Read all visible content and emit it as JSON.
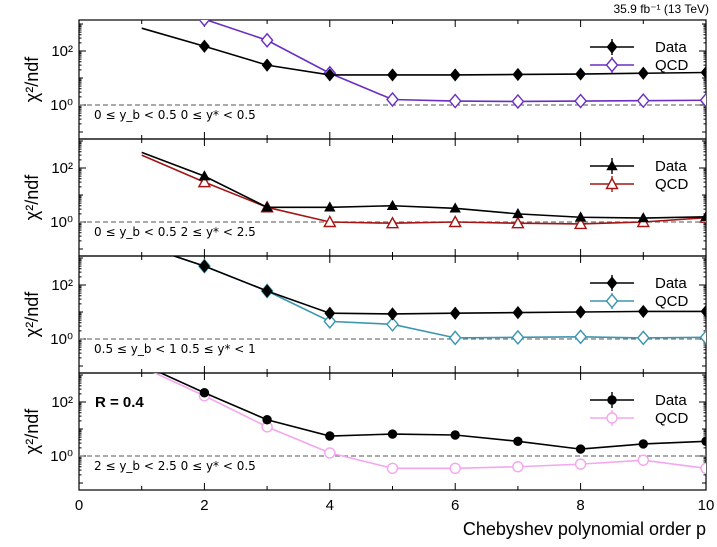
{
  "header": {
    "luminosity": "35.9 fb⁻¹ (13 TeV)"
  },
  "chart_data": {
    "type": "line",
    "x_axis": {
      "label": "Chebyshev polynomial order p",
      "range": [
        0,
        10
      ],
      "ticks": [
        "0",
        "2",
        "4",
        "6",
        "8",
        "10"
      ]
    },
    "y_axis": {
      "label": "χ²/ndf",
      "scale": "log",
      "ticks": [
        "10⁰",
        "10²"
      ]
    },
    "panels": [
      {
        "range_text": "0 ≤ y_b < 0.5    0 ≤ y* < 0.5",
        "series": [
          {
            "name": "Data",
            "color": "#000000",
            "marker": "diamond",
            "filled": true,
            "x": [
              1,
              2,
              3,
              4,
              5,
              6,
              7,
              8,
              9,
              10
            ],
            "y": [
              700,
              150,
              30,
              13,
              13,
              13,
              13.5,
              14,
              15,
              16
            ]
          },
          {
            "name": "QCD",
            "color": "#6a2ec2",
            "marker": "diamond",
            "filled": false,
            "x": [
              1,
              2,
              3,
              4,
              5,
              6,
              7,
              8,
              9,
              10
            ],
            "y": [
              8000,
              1500,
              250,
              15,
              1.6,
              1.4,
              1.35,
              1.4,
              1.45,
              1.5
            ]
          }
        ]
      },
      {
        "range_text": "0 ≤ y_b < 0.5    2 ≤ y* < 2.5",
        "series": [
          {
            "name": "Data",
            "color": "#000000",
            "marker": "triangle",
            "filled": true,
            "x": [
              1,
              2,
              3,
              4,
              5,
              6,
              7,
              8,
              9,
              10
            ],
            "y": [
              380,
              50,
              3.5,
              3.5,
              4.0,
              3.2,
              2.0,
              1.5,
              1.4,
              1.55
            ]
          },
          {
            "name": "QCD",
            "color": "#a31515",
            "marker": "triangle",
            "filled": false,
            "x": [
              1,
              2,
              3,
              4,
              5,
              6,
              7,
              8,
              9,
              10
            ],
            "y": [
              300,
              30,
              3.5,
              1.0,
              0.9,
              1.0,
              0.9,
              0.85,
              1.0,
              1.45
            ]
          }
        ]
      },
      {
        "range_text": "0.5 ≤ y_b < 1    0.5 ≤ y* < 1",
        "series": [
          {
            "name": "Data",
            "color": "#000000",
            "marker": "diamond",
            "filled": true,
            "x": [
              1,
              2,
              3,
              4,
              5,
              6,
              7,
              8,
              9,
              10
            ],
            "y": [
              3000,
              500,
              60,
              9,
              8.5,
              9,
              9.5,
              10,
              10.5,
              10.5
            ]
          },
          {
            "name": "QCD",
            "color": "#3d96b0",
            "marker": "diamond",
            "filled": false,
            "x": [
              1,
              2,
              3,
              4,
              5,
              6,
              7,
              8,
              9,
              10
            ],
            "y": [
              3000,
              500,
              60,
              4.5,
              3.5,
              1.1,
              1.15,
              1.2,
              1.1,
              1.15
            ]
          }
        ]
      },
      {
        "range_text": "2 ≤ y_b < 2.5    0 ≤ y* < 0.5",
        "r_label": "R = 0.4",
        "series": [
          {
            "name": "Data",
            "color": "#000000",
            "marker": "circle",
            "filled": true,
            "x": [
              1,
              2,
              3,
              4,
              5,
              6,
              7,
              8,
              9,
              10
            ],
            "y": [
              2500,
              220,
              22,
              5.5,
              6.5,
              6,
              3.5,
              1.8,
              2.8,
              3.5
            ]
          },
          {
            "name": "QCD",
            "color": "#f4a6ef",
            "marker": "circle",
            "filled": false,
            "x": [
              1,
              2,
              3,
              4,
              5,
              6,
              7,
              8,
              9,
              10
            ],
            "y": [
              2000,
              170,
              12,
              1.3,
              0.35,
              0.35,
              0.4,
              0.5,
              0.7,
              0.35
            ]
          }
        ]
      }
    ],
    "reference_line": {
      "y": 1,
      "style": "dashed"
    }
  }
}
